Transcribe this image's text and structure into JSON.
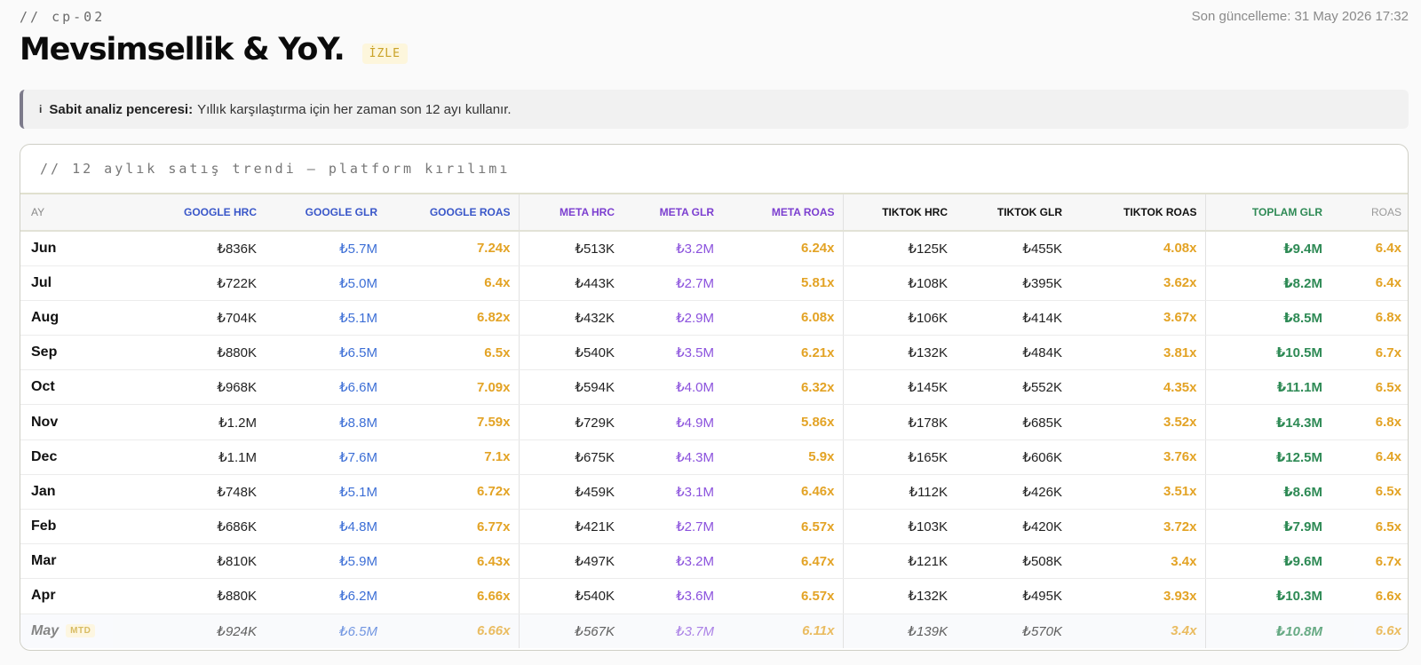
{
  "header": {
    "crumb": "// cp-02",
    "title": "Mevsimsellik & YoY.",
    "badge": "İZLE",
    "updated": "Son güncelleme: 31 May 2026 17:32"
  },
  "notice": {
    "icon": "i",
    "label": "Sabit analiz penceresi:",
    "text": "Yıllık karşılaştırma için her zaman son 12 ayı kullanır."
  },
  "table": {
    "title": "// 12 aylık satış trendi — platform kırılımı",
    "columns": [
      "AY",
      "GOOGLE HRC",
      "GOOGLE GLR",
      "GOOGLE ROAS",
      "META HRC",
      "META GLR",
      "META ROAS",
      "TIKTOK HRC",
      "TIKTOK GLR",
      "TIKTOK ROAS",
      "TOPLAM GLR",
      "ROAS"
    ],
    "mtd_label": "MTD",
    "rows": [
      {
        "month": "Jun",
        "cells": [
          "₺836K",
          "₺5.7M",
          "7.24x",
          "₺513K",
          "₺3.2M",
          "6.24x",
          "₺125K",
          "₺455K",
          "4.08x",
          "₺9.4M",
          "6.4x"
        ]
      },
      {
        "month": "Jul",
        "cells": [
          "₺722K",
          "₺5.0M",
          "6.4x",
          "₺443K",
          "₺2.7M",
          "5.81x",
          "₺108K",
          "₺395K",
          "3.62x",
          "₺8.2M",
          "6.4x"
        ]
      },
      {
        "month": "Aug",
        "cells": [
          "₺704K",
          "₺5.1M",
          "6.82x",
          "₺432K",
          "₺2.9M",
          "6.08x",
          "₺106K",
          "₺414K",
          "3.67x",
          "₺8.5M",
          "6.8x"
        ]
      },
      {
        "month": "Sep",
        "cells": [
          "₺880K",
          "₺6.5M",
          "6.5x",
          "₺540K",
          "₺3.5M",
          "6.21x",
          "₺132K",
          "₺484K",
          "3.81x",
          "₺10.5M",
          "6.7x"
        ]
      },
      {
        "month": "Oct",
        "cells": [
          "₺968K",
          "₺6.6M",
          "7.09x",
          "₺594K",
          "₺4.0M",
          "6.32x",
          "₺145K",
          "₺552K",
          "4.35x",
          "₺11.1M",
          "6.5x"
        ]
      },
      {
        "month": "Nov",
        "cells": [
          "₺1.2M",
          "₺8.8M",
          "7.59x",
          "₺729K",
          "₺4.9M",
          "5.86x",
          "₺178K",
          "₺685K",
          "3.52x",
          "₺14.3M",
          "6.8x"
        ]
      },
      {
        "month": "Dec",
        "cells": [
          "₺1.1M",
          "₺7.6M",
          "7.1x",
          "₺675K",
          "₺4.3M",
          "5.9x",
          "₺165K",
          "₺606K",
          "3.76x",
          "₺12.5M",
          "6.4x"
        ]
      },
      {
        "month": "Jan",
        "cells": [
          "₺748K",
          "₺5.1M",
          "6.72x",
          "₺459K",
          "₺3.1M",
          "6.46x",
          "₺112K",
          "₺426K",
          "3.51x",
          "₺8.6M",
          "6.5x"
        ]
      },
      {
        "month": "Feb",
        "cells": [
          "₺686K",
          "₺4.8M",
          "6.77x",
          "₺421K",
          "₺2.7M",
          "6.57x",
          "₺103K",
          "₺420K",
          "3.72x",
          "₺7.9M",
          "6.5x"
        ]
      },
      {
        "month": "Mar",
        "cells": [
          "₺810K",
          "₺5.9M",
          "6.43x",
          "₺497K",
          "₺3.2M",
          "6.47x",
          "₺121K",
          "₺508K",
          "3.4x",
          "₺9.6M",
          "6.7x"
        ]
      },
      {
        "month": "Apr",
        "cells": [
          "₺880K",
          "₺6.2M",
          "6.66x",
          "₺540K",
          "₺3.6M",
          "6.57x",
          "₺132K",
          "₺495K",
          "3.93x",
          "₺10.3M",
          "6.6x"
        ]
      },
      {
        "month": "May",
        "mtd": true,
        "cells": [
          "₺924K",
          "₺6.5M",
          "6.66x",
          "₺567K",
          "₺3.7M",
          "6.11x",
          "₺139K",
          "₺570K",
          "3.4x",
          "₺10.8M",
          "6.6x"
        ]
      }
    ]
  }
}
